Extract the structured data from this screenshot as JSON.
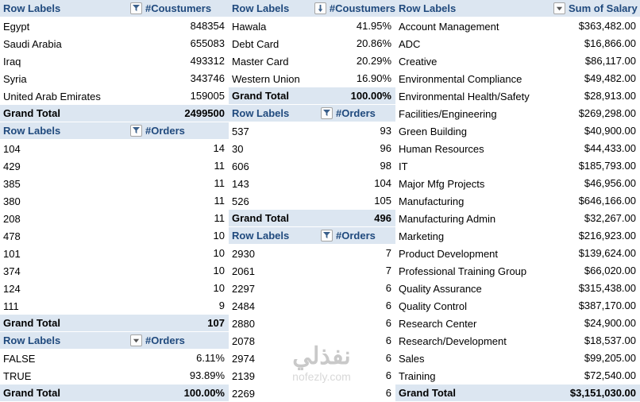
{
  "colors": {
    "header_bg": "#DCE6F1",
    "header_text": "#1F497D",
    "total_bg": "#DCE6F1",
    "watermark": "#C9C9C9"
  },
  "watermark": {
    "title": "نفذلي",
    "subtitle": "nofezly.com"
  },
  "columns": [
    {
      "name": "left",
      "tables": [
        {
          "name": "customers-by-country",
          "header": {
            "row_label": "Row Labels",
            "icon": "filter",
            "value_label": "#Coustumers"
          },
          "rows": [
            {
              "label": "Egypt",
              "value": "848354"
            },
            {
              "label": "Saudi Arabia",
              "value": "655083"
            },
            {
              "label": "Iraq",
              "value": "493312"
            },
            {
              "label": "Syria",
              "value": "343746"
            },
            {
              "label": "United Arab Emirates",
              "value": "159005"
            }
          ],
          "total": {
            "label": "Grand Total",
            "value": "2499500"
          }
        },
        {
          "name": "orders-by-product",
          "header": {
            "row_label": "Row Labels",
            "icon": "filter",
            "value_label": "#Orders"
          },
          "rows": [
            {
              "label": "104",
              "value": "14"
            },
            {
              "label": "429",
              "value": "11"
            },
            {
              "label": "385",
              "value": "11"
            },
            {
              "label": "380",
              "value": "11"
            },
            {
              "label": "208",
              "value": "11"
            },
            {
              "label": "478",
              "value": "10"
            },
            {
              "label": "101",
              "value": "10"
            },
            {
              "label": "374",
              "value": "10"
            },
            {
              "label": "124",
              "value": "10"
            },
            {
              "label": "111",
              "value": "9"
            }
          ],
          "total": {
            "label": "Grand Total",
            "value": "107"
          }
        },
        {
          "name": "orders-true-false",
          "header": {
            "row_label": "Row Labels",
            "icon": "dropdown",
            "value_label": "#Orders"
          },
          "rows": [
            {
              "label": "FALSE",
              "value": "6.11%"
            },
            {
              "label": "TRUE",
              "value": "93.89%"
            }
          ],
          "total": {
            "label": "Grand Total",
            "value": "100.00%"
          }
        }
      ]
    },
    {
      "name": "middle",
      "tables": [
        {
          "name": "customers-by-payment-method",
          "header": {
            "row_label": "Row Labels",
            "icon": "sort-desc",
            "value_label": "#Coustumers"
          },
          "rows": [
            {
              "label": "Hawala",
              "value": "41.95%"
            },
            {
              "label": "Debt Card",
              "value": "20.86%"
            },
            {
              "label": "Master Card",
              "value": "20.29%"
            },
            {
              "label": "Western Union",
              "value": "16.90%"
            }
          ],
          "total": {
            "label": "Grand Total",
            "value": "100.00%"
          }
        },
        {
          "name": "orders-mid",
          "header": {
            "row_label": "Row Labels",
            "icon": "filter",
            "value_label": "#Orders"
          },
          "rows": [
            {
              "label": "537",
              "value": "93"
            },
            {
              "label": "30",
              "value": "96"
            },
            {
              "label": "606",
              "value": "98"
            },
            {
              "label": "143",
              "value": "104"
            },
            {
              "label": "526",
              "value": "105"
            }
          ],
          "total": {
            "label": "Grand Total",
            "value": "496"
          }
        },
        {
          "name": "orders-bottom",
          "header": {
            "row_label": "Row Labels",
            "icon": "filter",
            "value_label": "#Orders"
          },
          "rows": [
            {
              "label": "2930",
              "value": "7"
            },
            {
              "label": "2061",
              "value": "7"
            },
            {
              "label": "2297",
              "value": "6"
            },
            {
              "label": "2484",
              "value": "6"
            },
            {
              "label": "2880",
              "value": "6"
            },
            {
              "label": "2078",
              "value": "6"
            },
            {
              "label": "2974",
              "value": "6"
            },
            {
              "label": "2139",
              "value": "6"
            },
            {
              "label": "2269",
              "value": "6"
            }
          ]
        }
      ]
    },
    {
      "name": "right",
      "tables": [
        {
          "name": "salary-by-department",
          "header": {
            "row_label": "Row Labels",
            "icon": "dropdown",
            "value_label": "Sum of Salary"
          },
          "rows": [
            {
              "label": "Account Management",
              "value": "$363,482.00"
            },
            {
              "label": "ADC",
              "value": "$16,866.00"
            },
            {
              "label": "Creative",
              "value": "$86,117.00"
            },
            {
              "label": "Environmental Compliance",
              "value": "$49,482.00"
            },
            {
              "label": "Environmental Health/Safety",
              "value": "$28,913.00"
            },
            {
              "label": "Facilities/Engineering",
              "value": "$269,298.00"
            },
            {
              "label": "Green Building",
              "value": "$40,900.00"
            },
            {
              "label": "Human Resources",
              "value": "$44,433.00"
            },
            {
              "label": "IT",
              "value": "$185,793.00"
            },
            {
              "label": "Major Mfg Projects",
              "value": "$46,956.00"
            },
            {
              "label": "Manufacturing",
              "value": "$646,166.00"
            },
            {
              "label": "Manufacturing Admin",
              "value": "$32,267.00"
            },
            {
              "label": "Marketing",
              "value": "$216,923.00"
            },
            {
              "label": "Product Development",
              "value": "$139,624.00"
            },
            {
              "label": "Professional Training Group",
              "value": "$66,020.00"
            },
            {
              "label": "Quality Assurance",
              "value": "$315,438.00"
            },
            {
              "label": "Quality Control",
              "value": "$387,170.00"
            },
            {
              "label": "Research Center",
              "value": "$24,900.00"
            },
            {
              "label": "Research/Development",
              "value": "$18,537.00"
            },
            {
              "label": "Sales",
              "value": "$99,205.00"
            },
            {
              "label": "Training",
              "value": "$72,540.00"
            }
          ],
          "total": {
            "label": "Grand Total",
            "value": "$3,151,030.00"
          }
        }
      ]
    }
  ]
}
